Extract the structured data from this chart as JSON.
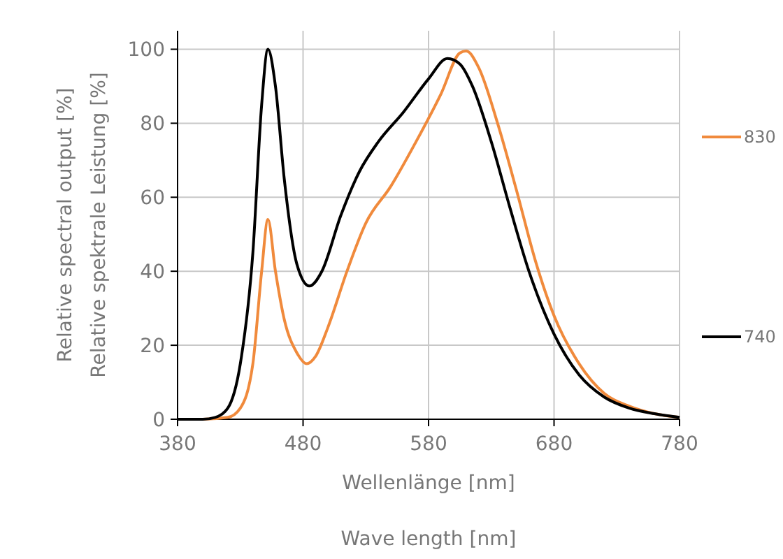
{
  "chart_data": {
    "type": "line",
    "xlabel": "Wellenlänge [nm]",
    "ylabel": "Relative spektrale Leistung [%]",
    "annotations": [
      "Relative spectral output [%]",
      "Wave length [nm]"
    ],
    "xlim": [
      380,
      780
    ],
    "xticks": [
      380,
      480,
      580,
      680,
      780
    ],
    "ylim": [
      0,
      105
    ],
    "yticks": [
      0,
      20,
      40,
      60,
      80,
      100
    ],
    "grid": true,
    "legend": "right",
    "line_style": "solid",
    "marker": "none",
    "series": [
      {
        "name": "830",
        "color": "#f08a3c",
        "x": [
          380,
          400,
          420,
          430,
          440,
          447,
          452,
          458,
          465,
          475,
          483,
          490,
          500,
          515,
          530,
          550,
          570,
          590,
          605,
          610,
          620,
          635,
          650,
          665,
          680,
          700,
          720,
          740,
          760,
          780
        ],
        "values": [
          0,
          0,
          0.5,
          3,
          15,
          40,
          54,
          40,
          27,
          18,
          15,
          17,
          25,
          40,
          53,
          63,
          75,
          88,
          99,
          99.5,
          95,
          80,
          62,
          43,
          28,
          15,
          7,
          3.5,
          1.5,
          0.5
        ]
      },
      {
        "name": "740",
        "color": "#000000",
        "x": [
          380,
          400,
          410,
          420,
          430,
          440,
          447,
          452,
          458,
          465,
          475,
          485,
          495,
          510,
          525,
          540,
          560,
          580,
          595,
          605,
          615,
          630,
          645,
          660,
          680,
          700,
          720,
          740,
          760,
          780
        ],
        "values": [
          0,
          0,
          0.5,
          3,
          15,
          45,
          85,
          100,
          90,
          65,
          42,
          36,
          40,
          55,
          67,
          75,
          83,
          92,
          97.5,
          96,
          90,
          75,
          57,
          40,
          23,
          12,
          6,
          3,
          1.5,
          0.5
        ]
      }
    ]
  }
}
